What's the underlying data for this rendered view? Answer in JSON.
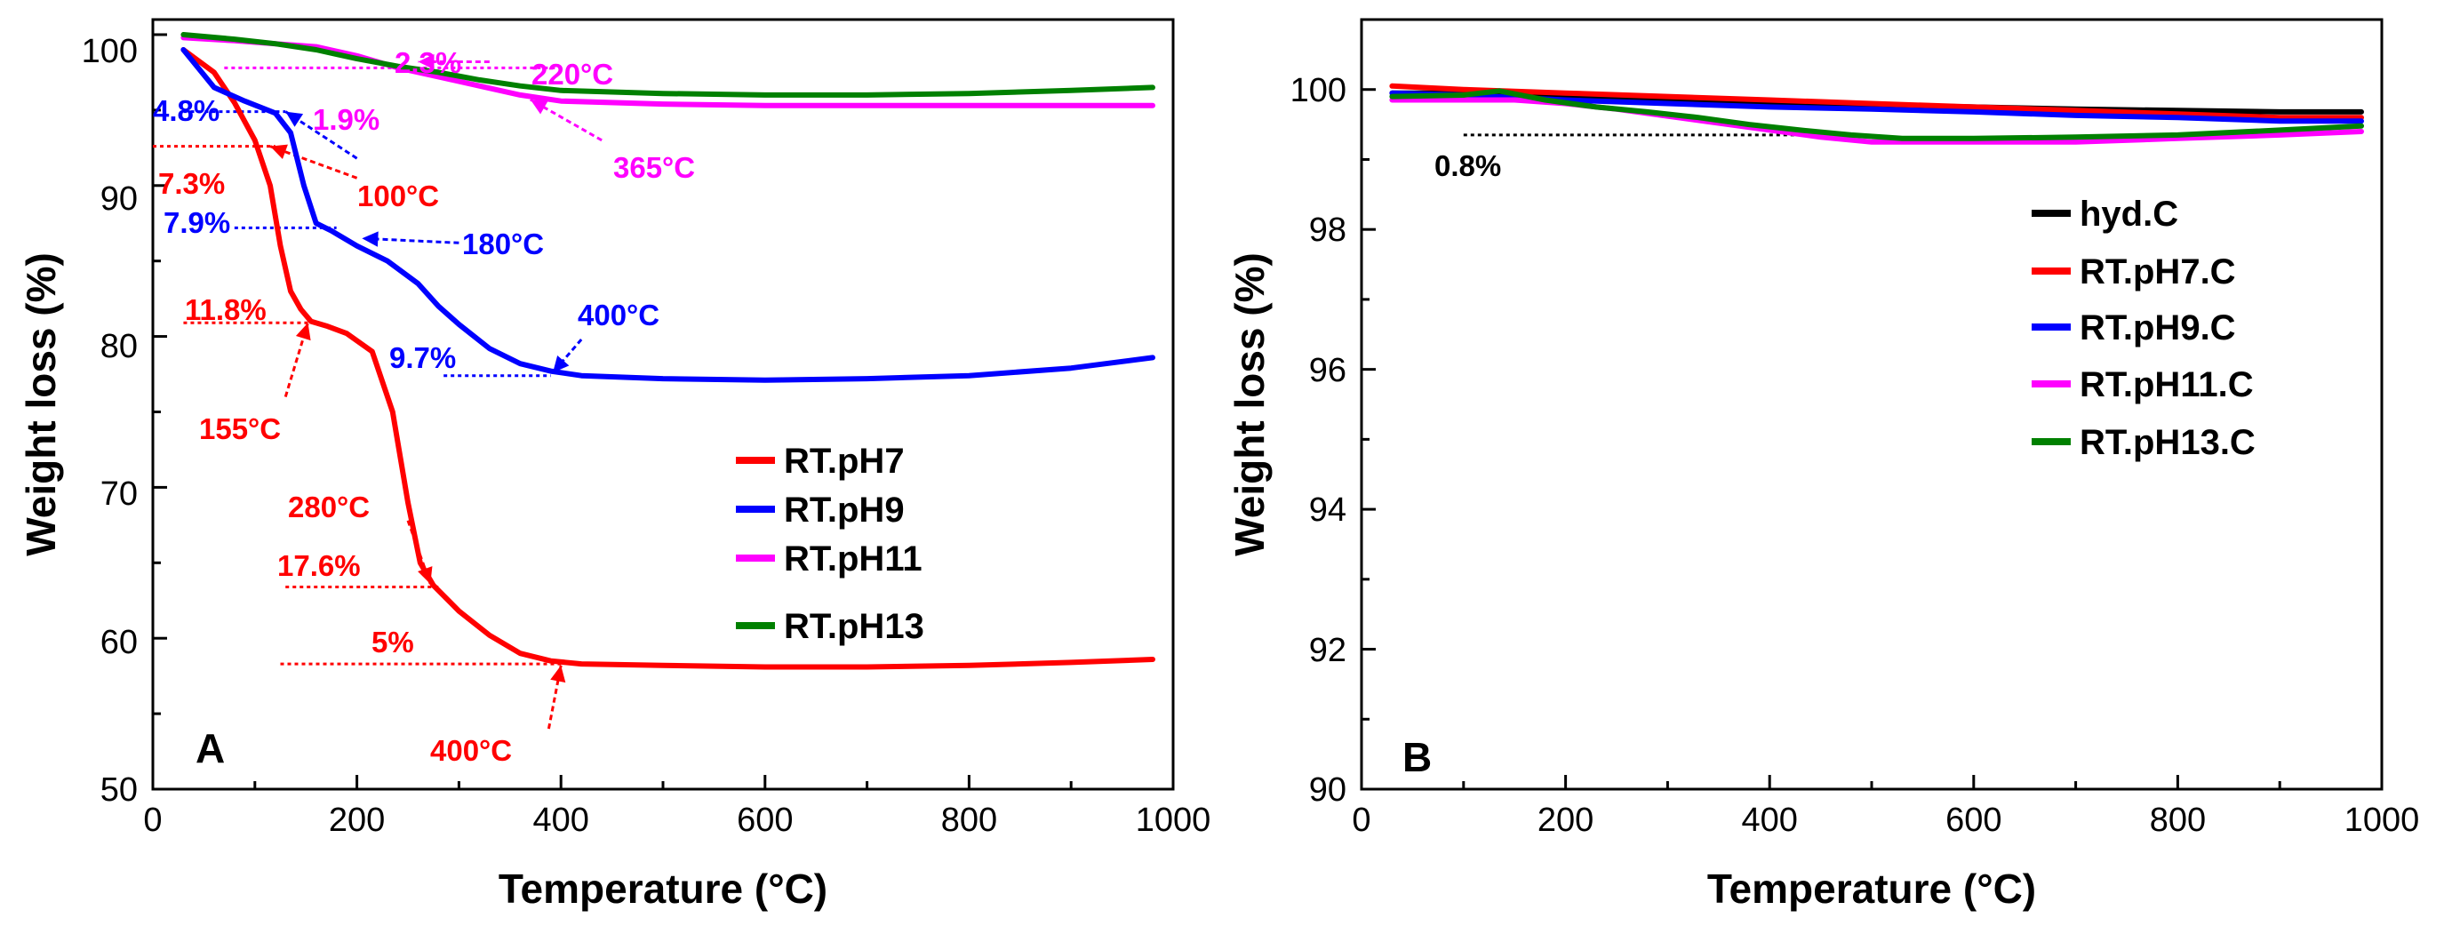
{
  "chart_data": [
    {
      "type": "line",
      "panel_label": "A",
      "xlabel": "Temperature (°C)",
      "ylabel": "Weight loss (%)",
      "xlim": [
        0,
        1000
      ],
      "ylim": [
        50,
        101
      ],
      "xticks": [
        "0",
        "200",
        "400",
        "600",
        "800",
        "1000"
      ],
      "yticks": [
        "50",
        "60",
        "70",
        "80",
        "90",
        "100"
      ],
      "legend_position": "center-right",
      "series": [
        {
          "name": "RT.pH7",
          "color": "#ff0000",
          "x": [
            30,
            60,
            80,
            100,
            115,
            125,
            135,
            145,
            155,
            170,
            190,
            215,
            235,
            250,
            262,
            275,
            300,
            330,
            360,
            390,
            420,
            500,
            600,
            700,
            800,
            900,
            980
          ],
          "y": [
            99,
            97.5,
            95.5,
            93,
            90,
            86,
            83,
            81.8,
            81,
            80.7,
            80.2,
            79,
            75,
            69,
            65,
            63.5,
            61.8,
            60.2,
            59,
            58.5,
            58.3,
            58.2,
            58.1,
            58.1,
            58.2,
            58.4,
            58.6
          ]
        },
        {
          "name": "RT.pH9",
          "color": "#0000ff",
          "x": [
            30,
            60,
            90,
            120,
            135,
            148,
            160,
            175,
            200,
            230,
            260,
            280,
            300,
            330,
            360,
            390,
            420,
            500,
            600,
            700,
            800,
            900,
            980
          ],
          "y": [
            99,
            96.5,
            95.6,
            94.8,
            93.5,
            90,
            87.5,
            87,
            86,
            85,
            83.5,
            82,
            80.8,
            79.2,
            78.2,
            77.7,
            77.4,
            77.2,
            77.1,
            77.2,
            77.4,
            77.9,
            78.6
          ]
        },
        {
          "name": "RT.pH11",
          "color": "#ff00ff",
          "x": [
            30,
            80,
            120,
            160,
            200,
            240,
            280,
            320,
            360,
            400,
            500,
            600,
            700,
            800,
            900,
            980
          ],
          "y": [
            99.8,
            99.6,
            99.4,
            99.2,
            98.6,
            97.8,
            97.2,
            96.6,
            96.0,
            95.6,
            95.4,
            95.3,
            95.3,
            95.3,
            95.3,
            95.3
          ]
        },
        {
          "name": "RT.pH13",
          "color": "#008000",
          "x": [
            30,
            80,
            120,
            160,
            200,
            240,
            280,
            320,
            360,
            400,
            500,
            600,
            700,
            800,
            900,
            980
          ],
          "y": [
            100,
            99.7,
            99.4,
            99.0,
            98.4,
            97.9,
            97.5,
            97.0,
            96.6,
            96.3,
            96.1,
            96.0,
            96.0,
            96.1,
            96.3,
            96.5
          ]
        }
      ],
      "annotations": [
        {
          "text": "4.8%",
          "color": "#0000ff"
        },
        {
          "text": "7.3%",
          "color": "#ff0000"
        },
        {
          "text": "100°C",
          "color": "#ff0000"
        },
        {
          "text": "7.9%",
          "color": "#0000ff"
        },
        {
          "text": "180°C",
          "color": "#0000ff"
        },
        {
          "text": "2.3%",
          "color": "#ff00ff"
        },
        {
          "text": "220°C",
          "color": "#ff00ff"
        },
        {
          "text": "1.9%",
          "color": "#ff00ff"
        },
        {
          "text": "365°C",
          "color": "#ff00ff"
        },
        {
          "text": "11.8%",
          "color": "#ff0000"
        },
        {
          "text": "155°C",
          "color": "#ff0000"
        },
        {
          "text": "400°C",
          "color": "#0000ff"
        },
        {
          "text": "9.7%",
          "color": "#0000ff"
        },
        {
          "text": "280°C",
          "color": "#ff0000"
        },
        {
          "text": "17.6%",
          "color": "#ff0000"
        },
        {
          "text": "5%",
          "color": "#ff0000"
        },
        {
          "text": "400°C",
          "color": "#ff0000"
        }
      ]
    },
    {
      "type": "line",
      "panel_label": "B",
      "xlabel": "Temperature (°C)",
      "ylabel": "Weight loss (%)",
      "xlim": [
        0,
        1000
      ],
      "ylim": [
        90,
        101
      ],
      "xticks": [
        "0",
        "200",
        "400",
        "600",
        "800",
        "1000"
      ],
      "yticks": [
        "90",
        "92",
        "94",
        "96",
        "98",
        "100"
      ],
      "legend_position": "upper-right",
      "series": [
        {
          "name": "hyd.C",
          "color": "#000000",
          "x": [
            30,
            100,
            200,
            300,
            400,
            500,
            600,
            700,
            800,
            900,
            980
          ],
          "y": [
            99.95,
            99.95,
            99.9,
            99.85,
            99.8,
            99.78,
            99.75,
            99.72,
            99.7,
            99.68,
            99.68
          ]
        },
        {
          "name": "RT.pH7.C",
          "color": "#ff0000",
          "x": [
            30,
            100,
            200,
            300,
            400,
            500,
            600,
            700,
            800,
            900,
            980
          ],
          "y": [
            100.05,
            100.0,
            99.95,
            99.9,
            99.85,
            99.8,
            99.75,
            99.7,
            99.65,
            99.6,
            99.6
          ]
        },
        {
          "name": "RT.pH9.C",
          "color": "#0000ff",
          "x": [
            30,
            100,
            200,
            300,
            400,
            500,
            600,
            700,
            800,
            900,
            980
          ],
          "y": [
            99.95,
            99.92,
            99.85,
            99.8,
            99.75,
            99.72,
            99.68,
            99.63,
            99.6,
            99.55,
            99.55
          ]
        },
        {
          "name": "RT.pH11.C",
          "color": "#ff00ff",
          "x": [
            30,
            100,
            150,
            200,
            250,
            300,
            350,
            400,
            450,
            500,
            600,
            700,
            800,
            900,
            980
          ],
          "y": [
            99.85,
            99.85,
            99.85,
            99.8,
            99.72,
            99.62,
            99.52,
            99.42,
            99.32,
            99.25,
            99.25,
            99.25,
            99.3,
            99.35,
            99.4
          ]
        },
        {
          "name": "RT.pH13.C",
          "color": "#008000",
          "x": [
            30,
            100,
            135,
            180,
            230,
            280,
            330,
            380,
            430,
            480,
            530,
            600,
            700,
            800,
            900,
            980
          ],
          "y": [
            99.9,
            99.92,
            99.98,
            99.85,
            99.75,
            99.68,
            99.6,
            99.5,
            99.42,
            99.35,
            99.3,
            99.3,
            99.32,
            99.35,
            99.42,
            99.48
          ]
        }
      ],
      "annotations": [
        {
          "text": "0.8%",
          "color": "#000000"
        }
      ]
    }
  ]
}
